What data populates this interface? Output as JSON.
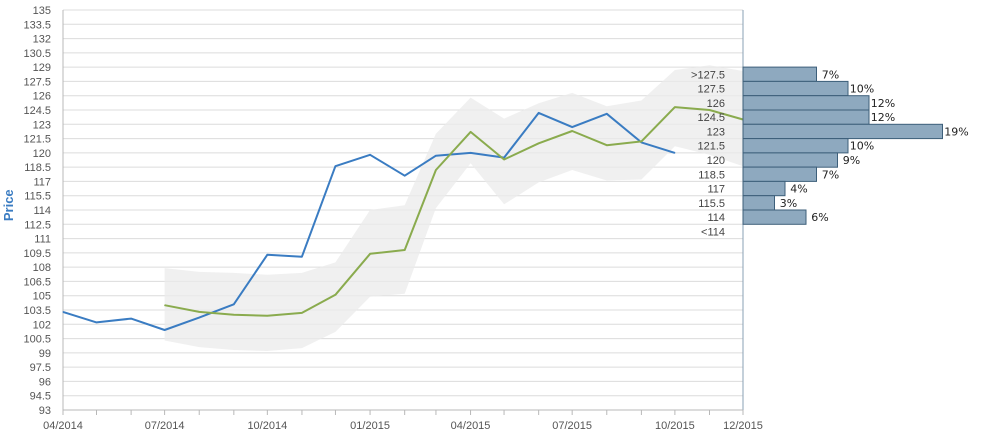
{
  "chart_data": {
    "type": "line",
    "title": "",
    "ylabel": "Price",
    "xlabel": "",
    "ylim": [
      93,
      135
    ],
    "yticks": [
      "93",
      "94.5",
      "96",
      "97.5",
      "99",
      "100.5",
      "102",
      "103.5",
      "105",
      "106.5",
      "108",
      "109.5",
      "111",
      "112.5",
      "114",
      "115.5",
      "117",
      "118.5",
      "120",
      "121.5",
      "123",
      "124.5",
      "126",
      "127.5",
      "129",
      "130.5",
      "132",
      "133.5",
      "135"
    ],
    "xticks": [
      "04/2014",
      "07/2014",
      "10/2014",
      "01/2015",
      "04/2015",
      "07/2015",
      "10/2015",
      "12/2015"
    ],
    "grid": true,
    "colors": {
      "price": "#3a7cc2",
      "average": "#8aab4e",
      "band": "#ebebeb",
      "hist_fill": "#8ea9bf",
      "hist_stroke": "#3d5f7a"
    },
    "series": [
      {
        "key": "price",
        "x": [
          "2014-04-01",
          "2014-05-01",
          "2014-06-01",
          "2014-07-01",
          "2014-08-01",
          "2014-09-01",
          "2014-10-01",
          "2014-11-01",
          "2014-12-01",
          "2015-01-01",
          "2015-02-01",
          "2015-03-01",
          "2015-04-01",
          "2015-05-01",
          "2015-06-01",
          "2015-07-01",
          "2015-08-01",
          "2015-09-01",
          "2015-10-01"
        ],
        "values": [
          103.3,
          102.2,
          102.6,
          101.4,
          102.7,
          104.1,
          109.3,
          109.1,
          118.6,
          119.8,
          117.6,
          119.7,
          120.0,
          119.5,
          124.2,
          122.7,
          124.1,
          121.1,
          120.0
        ]
      },
      {
        "key": "average",
        "x": [
          "2014-07-01",
          "2014-08-01",
          "2014-09-01",
          "2014-10-01",
          "2014-11-01",
          "2014-12-01",
          "2015-01-01",
          "2015-02-01",
          "2015-03-01",
          "2015-04-01",
          "2015-05-01",
          "2015-06-01",
          "2015-07-01",
          "2015-08-01",
          "2015-09-01",
          "2015-10-01",
          "2015-11-01",
          "2015-12-01",
          "2015-12-25"
        ],
        "values": [
          104.0,
          103.3,
          103.0,
          102.9,
          103.2,
          105.1,
          109.4,
          109.8,
          118.2,
          122.2,
          119.3,
          121.0,
          122.3,
          120.8,
          121.2,
          124.8,
          124.5,
          123.5,
          121.9
        ]
      }
    ],
    "band": {
      "x": [
        "2014-07-01",
        "2014-08-01",
        "2014-09-01",
        "2014-10-01",
        "2014-11-01",
        "2014-12-01",
        "2015-01-01",
        "2015-02-01",
        "2015-03-01",
        "2015-04-01",
        "2015-05-01",
        "2015-06-01",
        "2015-07-01",
        "2015-08-01",
        "2015-09-01",
        "2015-10-01",
        "2015-11-01",
        "2015-12-01",
        "2015-12-25"
      ],
      "upper": [
        107.9,
        107.5,
        107.4,
        107.2,
        107.4,
        108.5,
        114.0,
        114.5,
        122.0,
        125.8,
        123.6,
        125.2,
        126.3,
        124.9,
        125.5,
        128.7,
        129.2,
        128.6,
        127.8
      ],
      "lower": [
        100.3,
        99.6,
        99.3,
        99.2,
        99.5,
        101.2,
        104.9,
        105.2,
        114.2,
        118.9,
        114.6,
        116.9,
        118.2,
        117.1,
        117.2,
        120.7,
        119.8,
        118.6,
        117.1
      ]
    },
    "histogram": {
      "bins": [
        {
          "label": ">127.5",
          "pct_label": "7%",
          "value": 7,
          "y": 128.25
        },
        {
          "label": "127.5",
          "pct_label": "10%",
          "value": 10,
          "y": 126.75
        },
        {
          "label": "126",
          "pct_label": "12%",
          "value": 12,
          "y": 125.25
        },
        {
          "label": "124.5",
          "pct_label": "12%",
          "value": 12,
          "y": 123.75
        },
        {
          "label": "123",
          "pct_label": "19%",
          "value": 19,
          "y": 122.25
        },
        {
          "label": "121.5",
          "pct_label": "10%",
          "value": 10,
          "y": 120.75
        },
        {
          "label": "120",
          "pct_label": "9%",
          "value": 9,
          "y": 119.25
        },
        {
          "label": "118.5",
          "pct_label": "7%",
          "value": 7,
          "y": 117.75
        },
        {
          "label": "117",
          "pct_label": "4%",
          "value": 4,
          "y": 116.25
        },
        {
          "label": "115.5",
          "pct_label": "3%",
          "value": 3,
          "y": 114.75
        },
        {
          "label": "114",
          "pct_label": "6%",
          "value": 6,
          "y": 113.25
        },
        {
          "label": "<114",
          "pct_label": "",
          "value": 0,
          "y": 111.75
        }
      ]
    }
  }
}
